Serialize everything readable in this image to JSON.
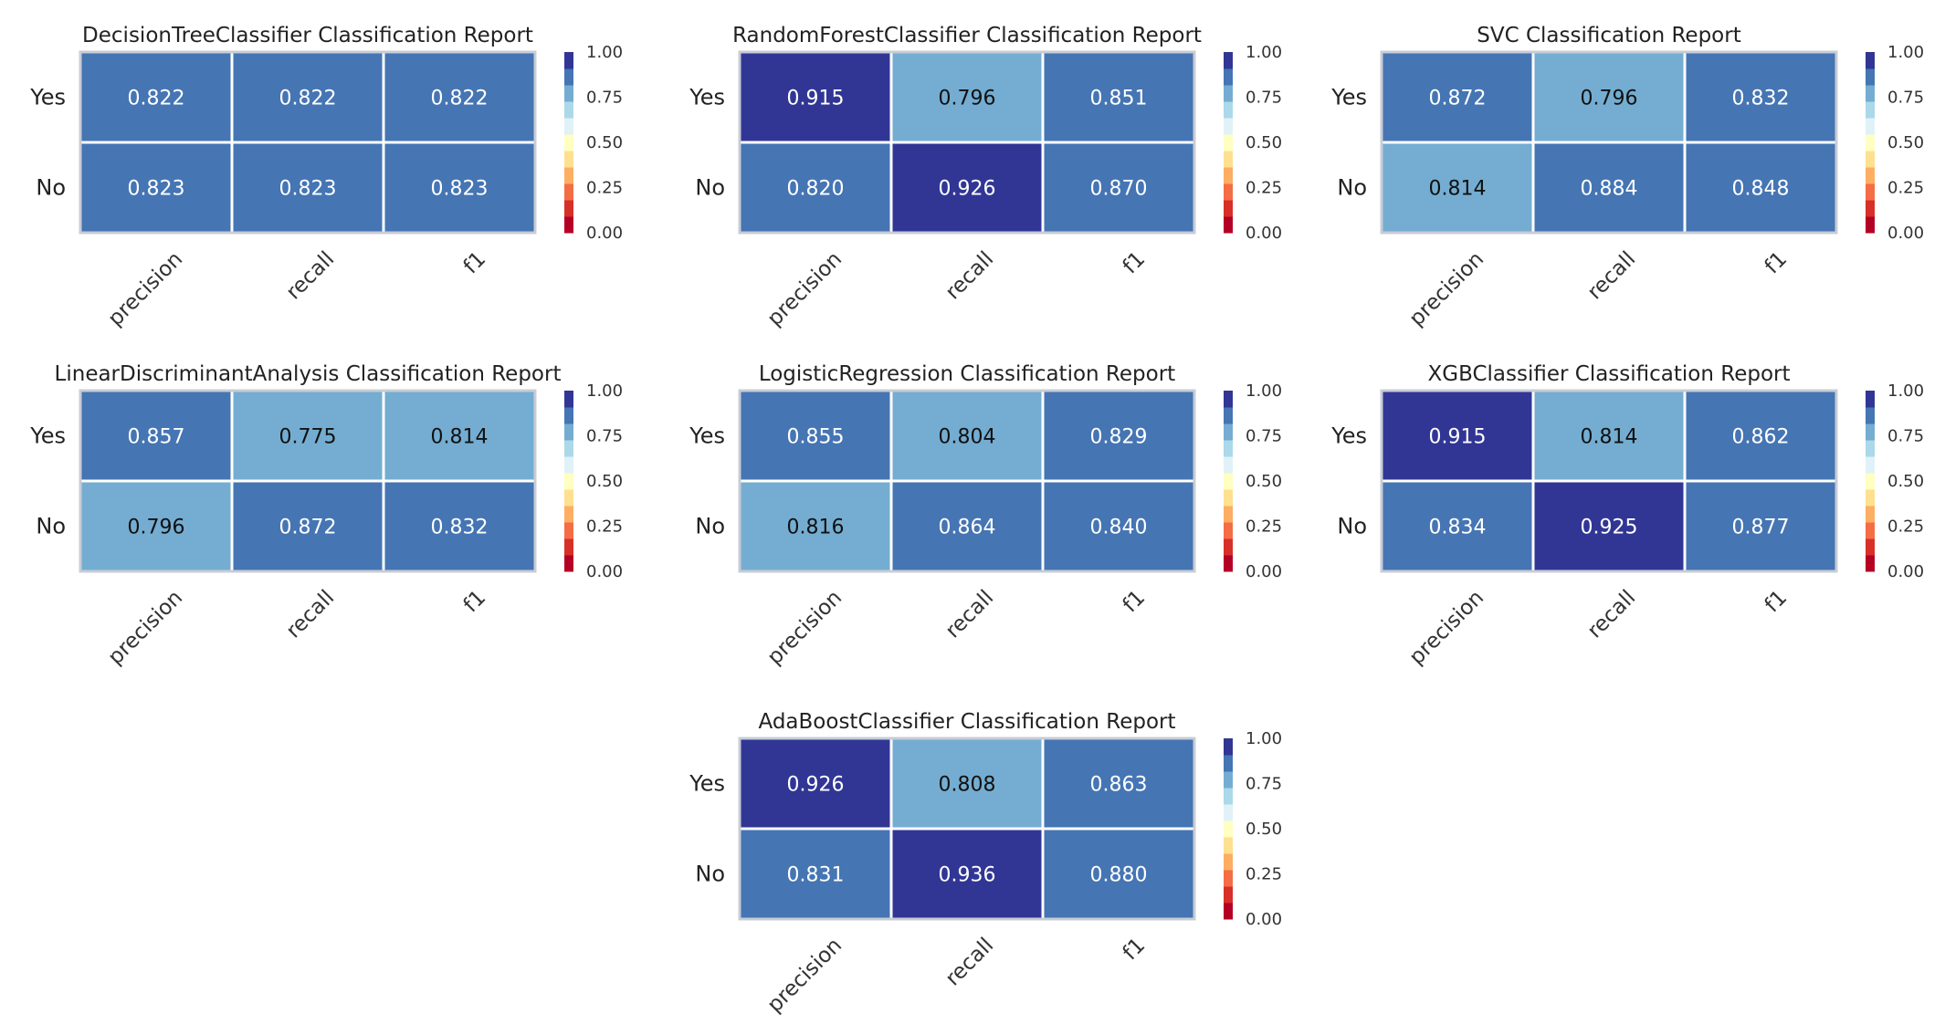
{
  "colors": {
    "cmap_bands": [
      "#b50026",
      "#d73028",
      "#f46d44",
      "#fdae62",
      "#fee090",
      "#feffc0",
      "#e0f2f7",
      "#abd9e9",
      "#74add1",
      "#4575b3",
      "#313695"
    ],
    "grid_line": "#ffffff",
    "frame": "#c8ccd6",
    "text_light": "#ffffff",
    "text_dark": "#111111"
  },
  "chart_data": [
    {
      "type": "heatmap",
      "title": "DecisionTreeClassifier Classification Report",
      "rows": [
        "Yes",
        "No"
      ],
      "columns": [
        "precision",
        "recall",
        "f1"
      ],
      "values": [
        [
          0.822,
          0.822,
          0.822
        ],
        [
          0.823,
          0.823,
          0.823
        ]
      ],
      "colorbar": {
        "range": [
          0,
          1
        ],
        "ticks": [
          "1.00",
          "0.75",
          "0.50",
          "0.25",
          "0.00"
        ]
      }
    },
    {
      "type": "heatmap",
      "title": "RandomForestClassifier Classification Report",
      "rows": [
        "Yes",
        "No"
      ],
      "columns": [
        "precision",
        "recall",
        "f1"
      ],
      "values": [
        [
          0.915,
          0.796,
          0.851
        ],
        [
          0.82,
          0.926,
          0.87
        ]
      ],
      "colorbar": {
        "range": [
          0,
          1
        ],
        "ticks": [
          "1.00",
          "0.75",
          "0.50",
          "0.25",
          "0.00"
        ]
      }
    },
    {
      "type": "heatmap",
      "title": "SVC Classification Report",
      "rows": [
        "Yes",
        "No"
      ],
      "columns": [
        "precision",
        "recall",
        "f1"
      ],
      "values": [
        [
          0.872,
          0.796,
          0.832
        ],
        [
          0.814,
          0.884,
          0.848
        ]
      ],
      "colorbar": {
        "range": [
          0,
          1
        ],
        "ticks": [
          "1.00",
          "0.75",
          "0.50",
          "0.25",
          "0.00"
        ]
      }
    },
    {
      "type": "heatmap",
      "title": "LinearDiscriminantAnalysis Classification Report",
      "rows": [
        "Yes",
        "No"
      ],
      "columns": [
        "precision",
        "recall",
        "f1"
      ],
      "values": [
        [
          0.857,
          0.775,
          0.814
        ],
        [
          0.796,
          0.872,
          0.832
        ]
      ],
      "colorbar": {
        "range": [
          0,
          1
        ],
        "ticks": [
          "1.00",
          "0.75",
          "0.50",
          "0.25",
          "0.00"
        ]
      }
    },
    {
      "type": "heatmap",
      "title": "LogisticRegression Classification Report",
      "rows": [
        "Yes",
        "No"
      ],
      "columns": [
        "precision",
        "recall",
        "f1"
      ],
      "values": [
        [
          0.855,
          0.804,
          0.829
        ],
        [
          0.816,
          0.864,
          0.84
        ]
      ],
      "colorbar": {
        "range": [
          0,
          1
        ],
        "ticks": [
          "1.00",
          "0.75",
          "0.50",
          "0.25",
          "0.00"
        ]
      }
    },
    {
      "type": "heatmap",
      "title": "XGBClassifier Classification Report",
      "rows": [
        "Yes",
        "No"
      ],
      "columns": [
        "precision",
        "recall",
        "f1"
      ],
      "values": [
        [
          0.915,
          0.814,
          0.862
        ],
        [
          0.834,
          0.925,
          0.877
        ]
      ],
      "colorbar": {
        "range": [
          0,
          1
        ],
        "ticks": [
          "1.00",
          "0.75",
          "0.50",
          "0.25",
          "0.00"
        ]
      }
    },
    {
      "type": "heatmap",
      "title": "AdaBoostClassifier Classification Report",
      "rows": [
        "Yes",
        "No"
      ],
      "columns": [
        "precision",
        "recall",
        "f1"
      ],
      "values": [
        [
          0.926,
          0.808,
          0.863
        ],
        [
          0.831,
          0.936,
          0.88
        ]
      ],
      "colorbar": {
        "range": [
          0,
          1
        ],
        "ticks": [
          "1.00",
          "0.75",
          "0.50",
          "0.25",
          "0.00"
        ]
      }
    }
  ]
}
